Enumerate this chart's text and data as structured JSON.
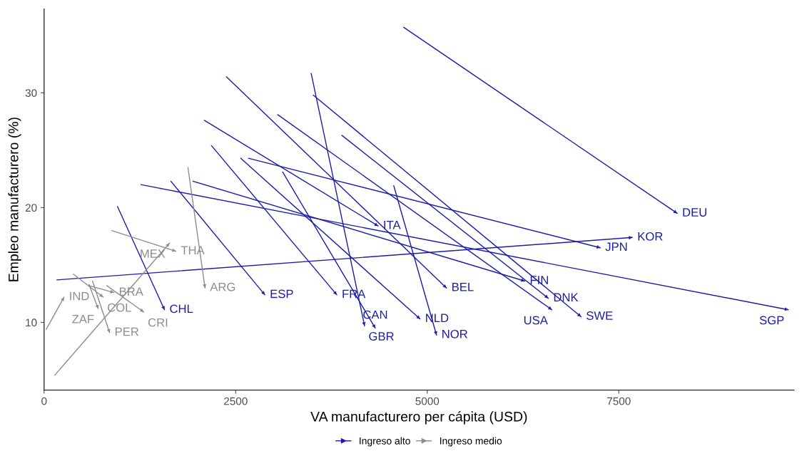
{
  "chart_data": {
    "type": "line",
    "xlabel": "VA manufacturero per cápita (USD)",
    "ylabel": "Empleo manufacturero (%)",
    "xlim": [
      0,
      9786
    ],
    "ylim": [
      4.1,
      37.3
    ],
    "xticks": [
      0,
      2500,
      5000,
      7500
    ],
    "yticks": [
      10,
      20,
      30
    ],
    "grid": false,
    "legend": "bottom",
    "marker": "none",
    "line_style": "solid",
    "series": [
      {
        "name": "Ingreso alto",
        "color": "#1c1ca8",
        "x": [
          4693,
          8262,
          null,
          167,
          7677,
          null,
          2667,
          7258,
          null,
          2091,
          4359,
          null,
          2379,
          5251,
          null,
          1942,
          6273,
          null,
          3885,
          6580,
          null,
          3048,
          6626,
          null,
          3513,
          7007,
          null,
          1264,
          9712,
          null,
          2184,
          3820,
          null,
          3485,
          4182,
          null,
          3113,
          4322,
          null,
          2565,
          4907,
          null,
          4563,
          5121,
          null,
          957,
          1571,
          null,
          1654,
          2881
        ],
        "values": [
          35.7,
          19.5,
          null,
          13.7,
          17.4,
          null,
          24.3,
          16.5,
          null,
          27.6,
          18.4,
          null,
          31.4,
          13.0,
          null,
          22.3,
          13.6,
          null,
          26.3,
          12.1,
          null,
          28.1,
          11.1,
          null,
          29.8,
          10.5,
          null,
          22.0,
          11.1,
          null,
          25.4,
          12.4,
          null,
          31.7,
          9.7,
          null,
          23.1,
          9.5,
          null,
          24.3,
          10.3,
          null,
          21.9,
          8.9,
          null,
          20.1,
          11.1,
          null,
          22.3,
          12.4
        ]
      },
      {
        "name": "Ingreso medio",
        "color": "#8c8c8c",
        "x": [
          28,
          260,
          null,
          883,
          1719,
          null,
          139,
          1636,
          null,
          1877,
          2100,
          null,
          381,
          771,
          null,
          586,
          911,
          null,
          818,
          1301,
          null,
          586,
          706,
          null,
          632,
          855
        ],
        "values": [
          9.4,
          12.2,
          null,
          18.0,
          16.2,
          null,
          5.4,
          16.9,
          null,
          23.5,
          13.0,
          null,
          14.2,
          12.2,
          null,
          13.2,
          12.6,
          null,
          13.2,
          10.9,
          null,
          13.3,
          11.2,
          null,
          13.6,
          9.1
        ]
      }
    ],
    "annotations": [
      {
        "text": "DEU",
        "x": 8262,
        "y": 19.5
      },
      {
        "text": "KOR",
        "x": 7677,
        "y": 17.4
      },
      {
        "text": "JPN",
        "x": 7258,
        "y": 16.5
      },
      {
        "text": "ITA",
        "x": 4359,
        "y": 18.4
      },
      {
        "text": "BEL",
        "x": 5251,
        "y": 13.0
      },
      {
        "text": "FIN",
        "x": 6273,
        "y": 13.6
      },
      {
        "text": "DNK",
        "x": 6580,
        "y": 12.1
      },
      {
        "text": "USA",
        "x": 6626,
        "y": 11.1
      },
      {
        "text": "SWE",
        "x": 7007,
        "y": 10.5
      },
      {
        "text": "SGP",
        "x": 9712,
        "y": 11.1
      },
      {
        "text": "FRA",
        "x": 3820,
        "y": 12.4
      },
      {
        "text": "GBR",
        "x": 4182,
        "y": 9.7
      },
      {
        "text": "CAN",
        "x": 4322,
        "y": 9.5
      },
      {
        "text": "NLD",
        "x": 4907,
        "y": 10.3
      },
      {
        "text": "NOR",
        "x": 5121,
        "y": 8.9
      },
      {
        "text": "CHL",
        "x": 1571,
        "y": 11.1
      },
      {
        "text": "ESP",
        "x": 2881,
        "y": 12.4
      },
      {
        "text": "IND",
        "x": 260,
        "y": 12.2
      },
      {
        "text": "THA",
        "x": 1719,
        "y": 16.2
      },
      {
        "text": "MEX",
        "x": 1636,
        "y": 16.9
      },
      {
        "text": "ARG",
        "x": 2100,
        "y": 13.0
      },
      {
        "text": "COL",
        "x": 771,
        "y": 12.2
      },
      {
        "text": "BRA",
        "x": 911,
        "y": 12.6
      },
      {
        "text": "CRI",
        "x": 1301,
        "y": 10.9
      },
      {
        "text": "ZAF",
        "x": 706,
        "y": 11.2
      },
      {
        "text": "PER",
        "x": 855,
        "y": 9.1
      }
    ]
  }
}
